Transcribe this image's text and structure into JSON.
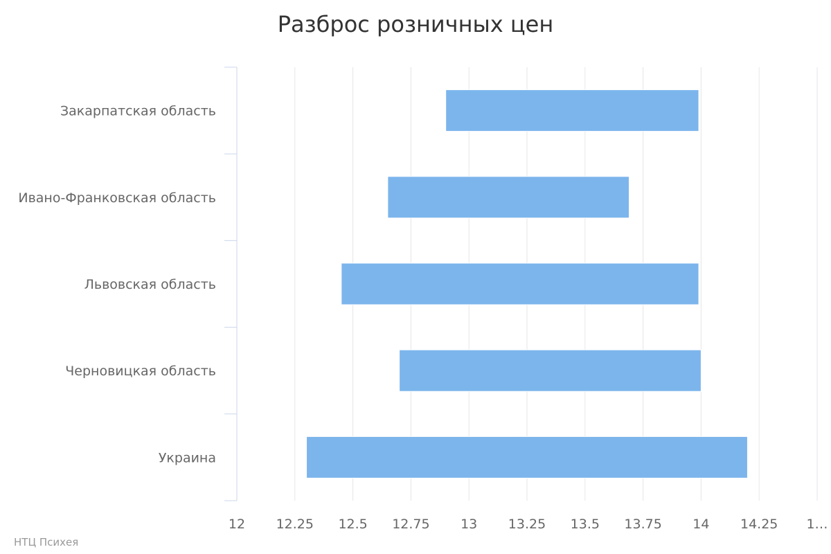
{
  "chart_data": {
    "type": "bar",
    "orientation": "horizontal",
    "subtype": "range",
    "title": "Разброс розничных цен",
    "credit": "НТЦ Психея",
    "categories": [
      "Закарпатская область",
      "Ивано-Франковская область",
      "Львовская область",
      "Черновицкая область",
      "Украина"
    ],
    "series": [
      {
        "name": "Разброс",
        "low": [
          12.9,
          12.65,
          12.45,
          12.7,
          12.3
        ],
        "high": [
          13.99,
          13.69,
          13.99,
          14.0,
          14.2
        ]
      }
    ],
    "xlim": [
      12,
      14.5
    ],
    "ticks": [
      "12",
      "12.25",
      "12.5",
      "12.75",
      "13",
      "13.25",
      "13.5",
      "13.75",
      "14",
      "14.25",
      "1…"
    ],
    "tick_values": [
      12,
      12.25,
      12.5,
      12.75,
      13,
      13.25,
      13.5,
      13.75,
      14,
      14.25,
      14.5
    ],
    "grid": true,
    "bar_color": "#7cb5ec"
  }
}
